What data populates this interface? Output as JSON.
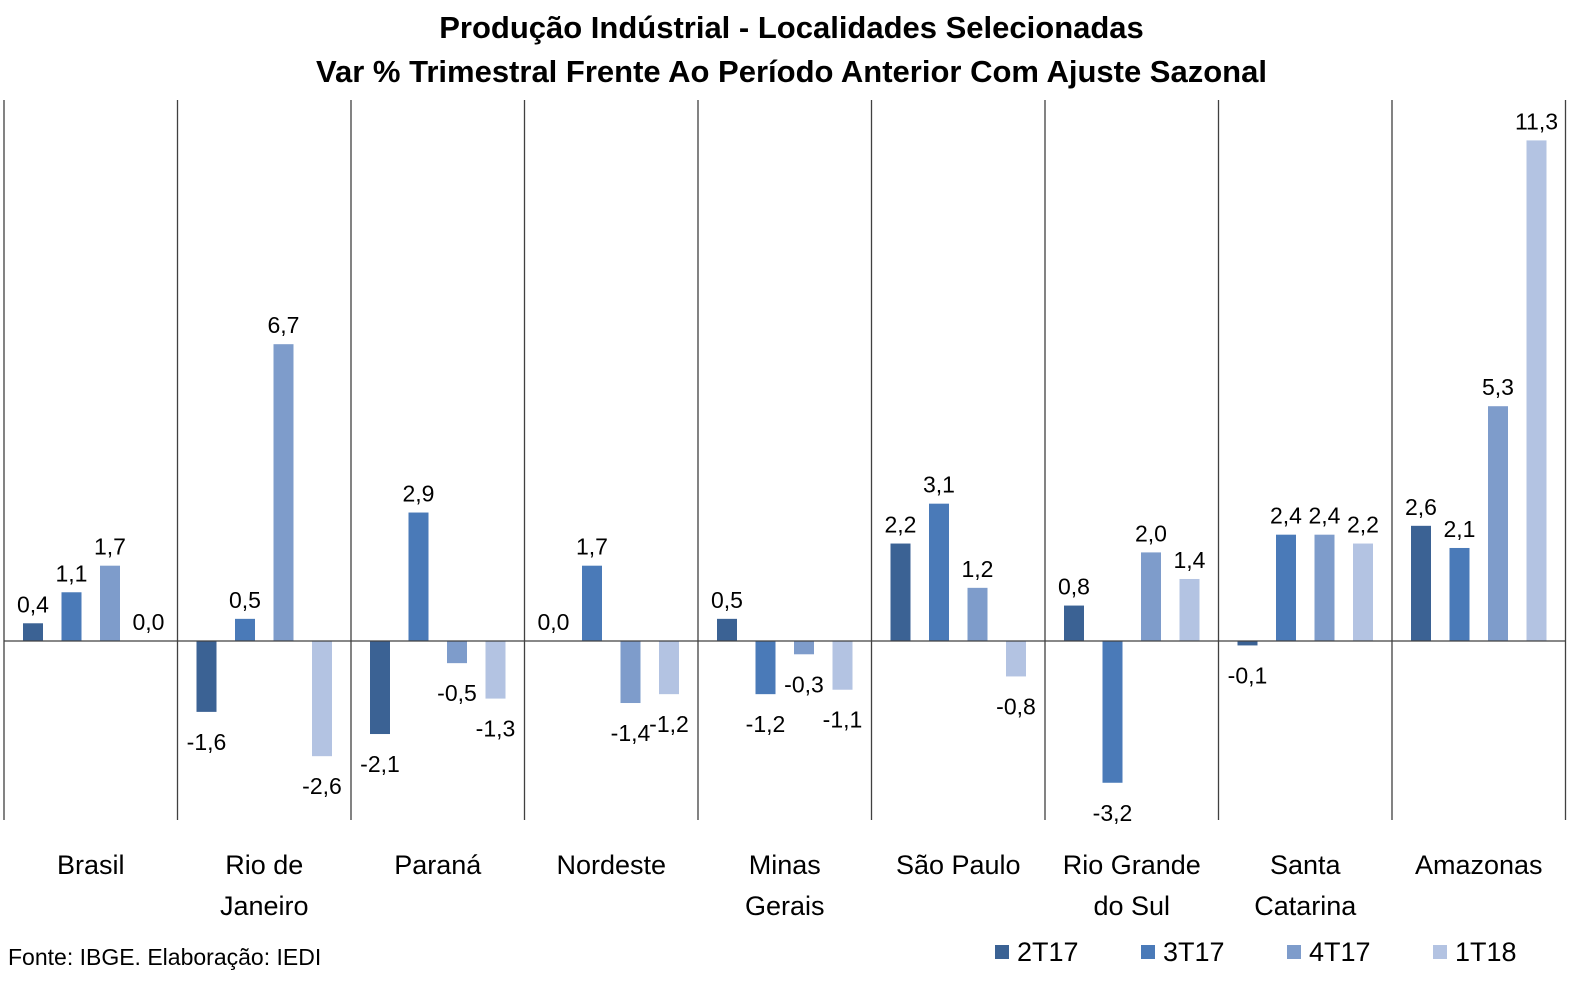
{
  "chart_data": {
    "type": "bar",
    "title": "Produção Indústrial - Localidades Selecionadas",
    "subtitle": "Var % Trimestral Frente Ao Período Anterior Com Ajuste Sazonal",
    "categories": [
      [
        "Brasil"
      ],
      [
        "Rio de",
        "Janeiro"
      ],
      [
        "Paraná"
      ],
      [
        "Nordeste"
      ],
      [
        "Minas",
        "Gerais"
      ],
      [
        "São Paulo"
      ],
      [
        "Rio Grande",
        "do Sul"
      ],
      [
        "Santa",
        "Catarina"
      ],
      [
        "Amazonas"
      ]
    ],
    "series": [
      {
        "name": "2T17",
        "color": "#3b6294",
        "values": [
          0.4,
          -1.6,
          -2.1,
          0.0,
          0.5,
          2.2,
          0.8,
          -0.1,
          2.6
        ],
        "labels": [
          "0,4",
          "-1,6",
          "-2,1",
          "0,0",
          "0,5",
          "2,2",
          "0,8",
          "-0,1",
          "2,6"
        ]
      },
      {
        "name": "3T17",
        "color": "#4a7ab8",
        "values": [
          1.1,
          0.5,
          2.9,
          1.7,
          -1.2,
          3.1,
          -3.2,
          2.4,
          2.1
        ],
        "labels": [
          "1,1",
          "0,5",
          "2,9",
          "1,7",
          "-1,2",
          "3,1",
          "-3,2",
          "2,4",
          "2,1"
        ]
      },
      {
        "name": "4T17",
        "color": "#7e9ccb",
        "values": [
          1.7,
          6.7,
          -0.5,
          -1.4,
          -0.3,
          1.2,
          2.0,
          2.4,
          5.3
        ],
        "labels": [
          "1,7",
          "6,7",
          "-0,5",
          "-1,4",
          "-0,3",
          "1,2",
          "2,0",
          "2,4",
          "5,3"
        ]
      },
      {
        "name": "1T18",
        "color": "#b3c3e2",
        "values": [
          0.0,
          -2.6,
          -1.3,
          -1.2,
          -1.1,
          -0.8,
          1.4,
          2.2,
          11.3
        ],
        "labels": [
          "0,0",
          "-2,6",
          "-1,3",
          "-1,2",
          "-1,1",
          "-0,8",
          "1,4",
          "2,2",
          "11,3"
        ]
      }
    ],
    "ylim": [
      -4,
      12
    ],
    "grid": false,
    "legend_position": "bottom-right",
    "source": "Fonte: IBGE. Elaboração: IEDI"
  }
}
